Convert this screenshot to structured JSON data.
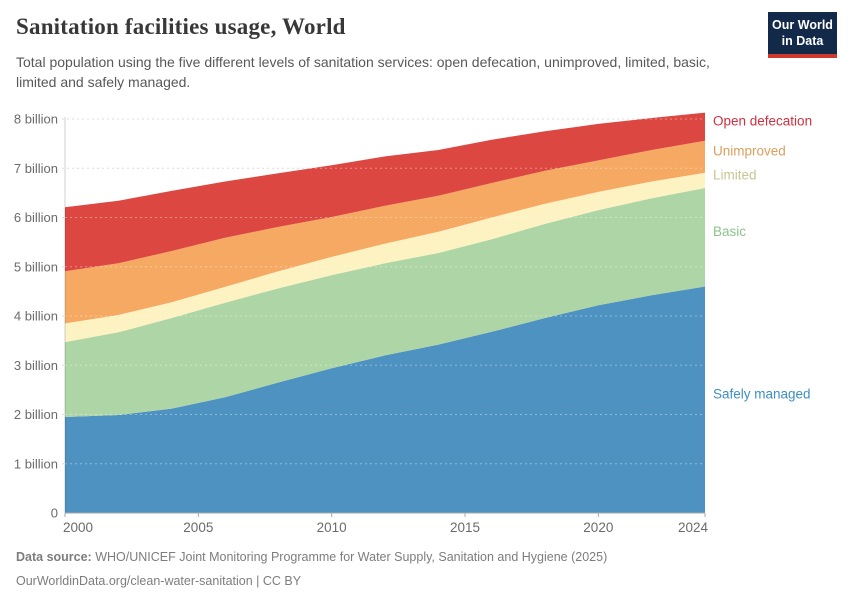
{
  "header": {
    "title": "Sanitation facilities usage, World",
    "subtitle": "Total population using the five different levels of sanitation services: open defecation, unimproved, limited, basic, limited and safely managed.",
    "logo": {
      "line1": "Our World",
      "line2": "in Data",
      "bg_color": "#12294a",
      "accent_color": "#cf3a30"
    }
  },
  "chart_data": {
    "type": "area",
    "stacked": true,
    "title": "Sanitation facilities usage, World",
    "xlabel": "",
    "ylabel": "",
    "xlim": [
      2000,
      2024
    ],
    "ylim": [
      0,
      8.3
    ],
    "grid": "dashed-horizontal",
    "legend_position": "right-of-plot",
    "x": [
      2000,
      2002,
      2004,
      2006,
      2008,
      2010,
      2012,
      2014,
      2016,
      2018,
      2020,
      2022,
      2024
    ],
    "series": [
      {
        "name": "Safely managed",
        "color": "#4d92c1",
        "label_color": "#3d8ec5",
        "values": [
          1.95,
          1.99,
          2.12,
          2.35,
          2.65,
          2.94,
          3.2,
          3.42,
          3.68,
          3.96,
          4.22,
          4.42,
          4.6
        ]
      },
      {
        "name": "Basic",
        "color": "#aed5a5",
        "label_color": "#8ec28b",
        "values": [
          1.52,
          1.68,
          1.84,
          1.92,
          1.91,
          1.89,
          1.87,
          1.86,
          1.88,
          1.91,
          1.93,
          1.97,
          2.0
        ]
      },
      {
        "name": "Limited",
        "color": "#fdf2c2",
        "label_color": "#c6c694",
        "values": [
          0.38,
          0.35,
          0.32,
          0.32,
          0.35,
          0.37,
          0.4,
          0.43,
          0.44,
          0.41,
          0.37,
          0.34,
          0.31
        ]
      },
      {
        "name": "Unimproved",
        "color": "#f5a963",
        "label_color": "#d9a05e",
        "values": [
          1.06,
          1.05,
          1.04,
          1.0,
          0.9,
          0.81,
          0.77,
          0.73,
          0.7,
          0.67,
          0.64,
          0.64,
          0.65
        ]
      },
      {
        "name": "Open defecation",
        "color": "#dc4742",
        "label_color": "#cf303f",
        "values": [
          1.3,
          1.27,
          1.22,
          1.14,
          1.09,
          1.05,
          1.0,
          0.93,
          0.88,
          0.8,
          0.74,
          0.65,
          0.57
        ]
      }
    ],
    "yticks": [
      {
        "v": 0,
        "label": "0"
      },
      {
        "v": 1,
        "label": "1 billion"
      },
      {
        "v": 2,
        "label": "2 billion"
      },
      {
        "v": 3,
        "label": "3 billion"
      },
      {
        "v": 4,
        "label": "4 billion"
      },
      {
        "v": 5,
        "label": "5 billion"
      },
      {
        "v": 6,
        "label": "6 billion"
      },
      {
        "v": 7,
        "label": "7 billion"
      },
      {
        "v": 8,
        "label": "8 billion"
      }
    ],
    "xticks": [
      2000,
      2005,
      2010,
      2015,
      2020,
      2024
    ]
  },
  "footer": {
    "datasource_label": "Data source:",
    "datasource_text": "WHO/UNICEF Joint Monitoring Programme for Water Supply, Sanitation and Hygiene (2025)",
    "url": "OurWorldinData.org/clean-water-sanitation",
    "license": "| CC BY"
  }
}
